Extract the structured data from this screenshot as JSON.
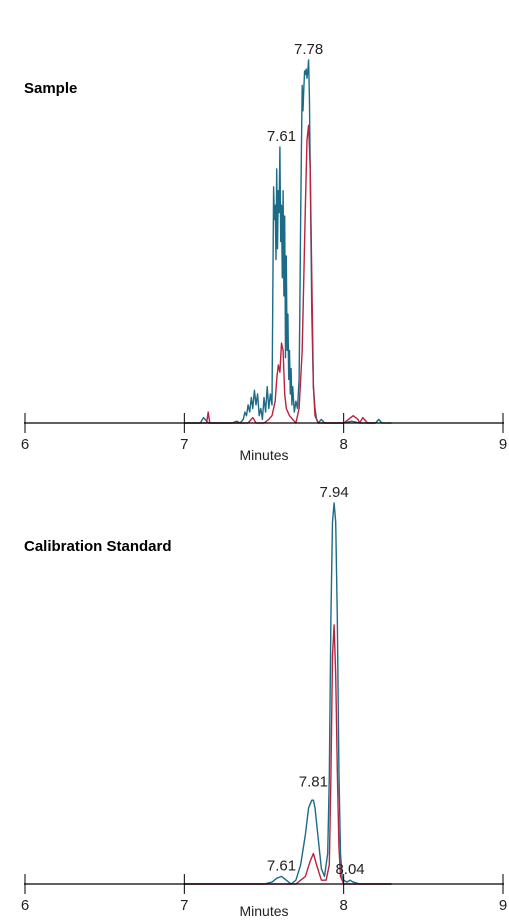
{
  "chart_data": [
    {
      "type": "line",
      "title": "Sample",
      "xlabel": "Minutes",
      "ylabel": "",
      "xlim": [
        6,
        9
      ],
      "ylim": [
        0,
        100
      ],
      "x_ticks": [
        "6",
        "7",
        "8",
        "9"
      ],
      "grid": false,
      "colors": {
        "teal": "#1c6b87",
        "red": "#b8233e"
      },
      "peak_labels": [
        {
          "x": 7.61,
          "y": 76,
          "text": "7.61"
        },
        {
          "x": 7.78,
          "y": 100,
          "text": "7.78"
        }
      ],
      "series": [
        {
          "color": "#1c6b87",
          "x": [
            7.0,
            7.05,
            7.08,
            7.1,
            7.12,
            7.15,
            7.2,
            7.25,
            7.3,
            7.33,
            7.35,
            7.37,
            7.38,
            7.39,
            7.4,
            7.41,
            7.42,
            7.43,
            7.44,
            7.45,
            7.46,
            7.47,
            7.48,
            7.49,
            7.5,
            7.51,
            7.52,
            7.53,
            7.54,
            7.55,
            7.56,
            7.565,
            7.57,
            7.575,
            7.58,
            7.585,
            7.59,
            7.595,
            7.6,
            7.605,
            7.61,
            7.615,
            7.62,
            7.625,
            7.63,
            7.635,
            7.64,
            7.645,
            7.65,
            7.655,
            7.66,
            7.665,
            7.67,
            7.675,
            7.68,
            7.69,
            7.7,
            7.71,
            7.72,
            7.725,
            7.73,
            7.735,
            7.74,
            7.745,
            7.75,
            7.755,
            7.76,
            7.765,
            7.77,
            7.775,
            7.78,
            7.785,
            7.79,
            7.795,
            7.8,
            7.81,
            7.82,
            7.83,
            7.84,
            7.86,
            7.88,
            7.9,
            7.92,
            7.95,
            7.98,
            8.0,
            8.05,
            8.1,
            8.15,
            8.2,
            8.22,
            8.24,
            8.26,
            8.3
          ],
          "y": [
            0,
            0,
            0,
            0,
            1.5,
            0,
            0,
            0,
            0,
            0.5,
            0,
            1,
            3,
            2,
            5,
            3,
            7,
            4,
            9,
            5,
            8,
            2,
            4,
            1,
            7,
            3,
            10,
            4,
            8,
            5,
            65,
            56,
            60,
            45,
            70,
            48,
            64,
            58,
            76,
            50,
            60,
            40,
            64,
            35,
            57,
            18,
            46,
            20,
            30,
            12,
            20,
            8,
            15,
            5,
            10,
            3,
            6,
            4,
            12,
            30,
            55,
            75,
            93,
            86,
            92,
            97,
            96,
            97.5,
            95,
            97,
            100,
            90,
            70,
            50,
            30,
            10,
            4,
            1,
            0,
            1,
            0,
            0,
            0,
            0,
            0,
            0,
            0.5,
            0,
            0,
            0,
            1,
            0,
            0,
            0
          ]
        },
        {
          "color": "#b8233e",
          "x": [
            7.0,
            7.1,
            7.14,
            7.15,
            7.16,
            7.2,
            7.3,
            7.4,
            7.43,
            7.45,
            7.47,
            7.5,
            7.53,
            7.55,
            7.57,
            7.58,
            7.59,
            7.6,
            7.61,
            7.62,
            7.63,
            7.64,
            7.66,
            7.68,
            7.7,
            7.72,
            7.74,
            7.76,
            7.77,
            7.78,
            7.79,
            7.8,
            7.81,
            7.82,
            7.84,
            7.88,
            7.9,
            7.95,
            8.0,
            8.03,
            8.06,
            8.09,
            8.1,
            8.12,
            8.15,
            8.2
          ],
          "y": [
            0,
            0,
            0,
            3,
            0,
            0,
            0,
            0,
            1.5,
            0,
            0,
            0,
            1,
            2,
            6,
            12,
            16,
            14,
            22,
            20,
            8,
            4,
            2,
            1,
            0,
            4,
            20,
            60,
            78,
            82,
            70,
            40,
            10,
            2,
            0,
            0,
            0,
            0,
            0,
            1,
            2,
            1,
            0,
            1.5,
            0,
            0
          ]
        }
      ]
    },
    {
      "type": "line",
      "title": "Calibration Standard",
      "xlabel": "Minutes",
      "ylabel": "",
      "xlim": [
        6,
        9
      ],
      "ylim": [
        0,
        100
      ],
      "x_ticks": [
        "6",
        "7",
        "8",
        "9"
      ],
      "grid": false,
      "colors": {
        "teal": "#1c6b87",
        "red": "#b8233e"
      },
      "peak_labels": [
        {
          "x": 7.61,
          "y": 2,
          "text": "7.61"
        },
        {
          "x": 7.81,
          "y": 24,
          "text": "7.81"
        },
        {
          "x": 7.94,
          "y": 100,
          "text": "7.94"
        },
        {
          "x": 8.04,
          "y": 1,
          "text": "8.04"
        }
      ],
      "series": [
        {
          "color": "#1c6b87",
          "x": [
            7.0,
            7.5,
            7.55,
            7.58,
            7.61,
            7.64,
            7.67,
            7.7,
            7.73,
            7.76,
            7.78,
            7.8,
            7.81,
            7.82,
            7.84,
            7.86,
            7.88,
            7.9,
            7.91,
            7.92,
            7.93,
            7.94,
            7.95,
            7.96,
            7.97,
            7.98,
            7.99,
            8.0,
            8.02,
            8.04,
            8.06,
            8.1,
            8.2,
            8.3
          ],
          "y": [
            0,
            0,
            0.5,
            1.5,
            2,
            1,
            0,
            1,
            5,
            13,
            20,
            22,
            22,
            20,
            12,
            4,
            2,
            8,
            28,
            70,
            95,
            100,
            95,
            70,
            30,
            8,
            2,
            1,
            0.5,
            1,
            0.5,
            0,
            0,
            0
          ]
        },
        {
          "color": "#b8233e",
          "x": [
            7.0,
            7.5,
            7.7,
            7.76,
            7.79,
            7.81,
            7.83,
            7.86,
            7.89,
            7.91,
            7.92,
            7.93,
            7.94,
            7.95,
            7.96,
            7.97,
            7.98,
            8.0,
            8.1,
            8.3
          ],
          "y": [
            0,
            0,
            0,
            2,
            6,
            8,
            5,
            1,
            1,
            5,
            28,
            60,
            68,
            55,
            30,
            10,
            2,
            0,
            0,
            0
          ]
        }
      ]
    }
  ]
}
